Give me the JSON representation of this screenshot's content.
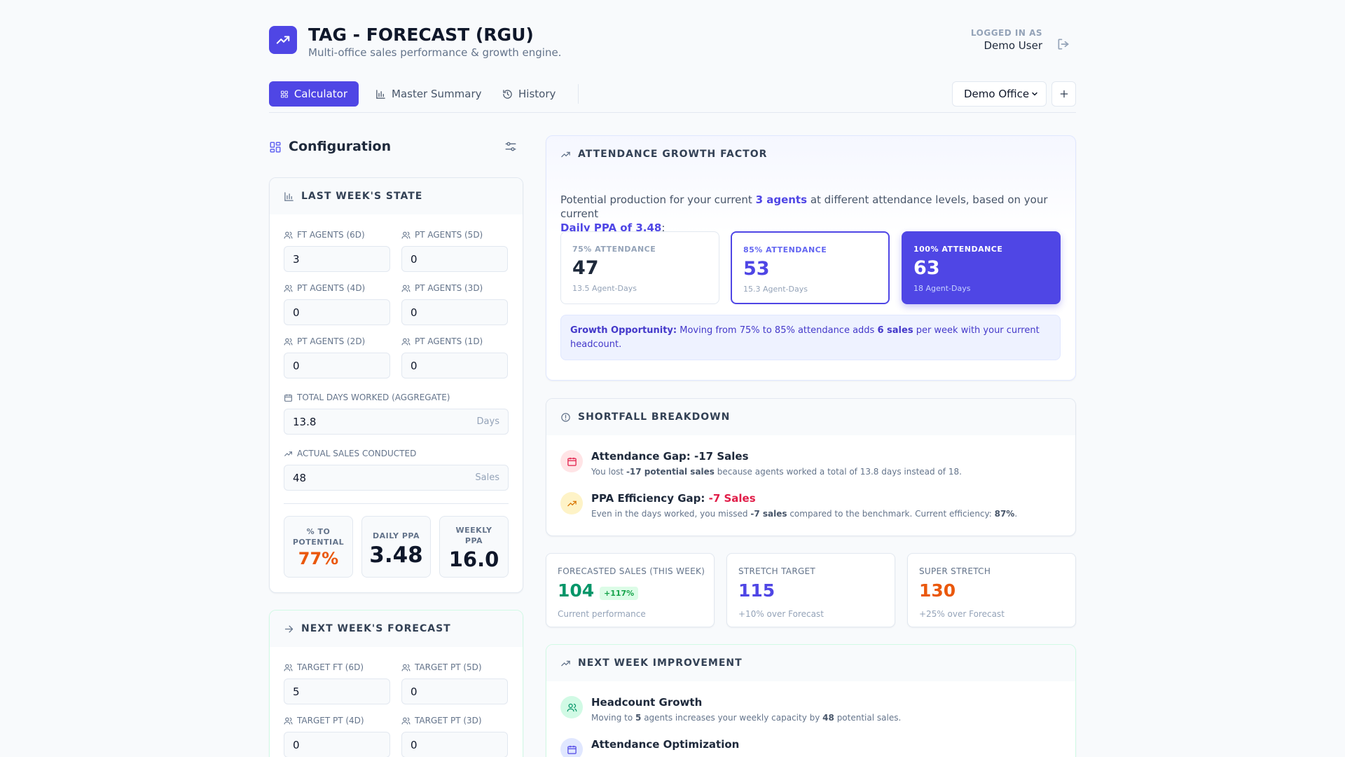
{
  "header": {
    "title": "TAG - FORECAST (RGU)",
    "subtitle": "Multi-office sales performance & growth engine.",
    "logged_in_label": "LOGGED IN AS",
    "user": "Demo User"
  },
  "nav": {
    "tabs": [
      {
        "label": "Calculator",
        "active": true
      },
      {
        "label": "Master Summary",
        "active": false
      },
      {
        "label": "History",
        "active": false
      }
    ],
    "office": "Demo Office"
  },
  "config": {
    "title": "Configuration",
    "last_week": {
      "heading": "LAST WEEK'S STATE",
      "fields": [
        {
          "label": "FT AGENTS (6D)",
          "value": "3"
        },
        {
          "label": "PT AGENTS (5D)",
          "value": "0"
        },
        {
          "label": "PT AGENTS (4D)",
          "value": "0"
        },
        {
          "label": "PT AGENTS (3D)",
          "value": "0"
        },
        {
          "label": "PT AGENTS (2D)",
          "value": "0"
        },
        {
          "label": "PT AGENTS (1D)",
          "value": "0"
        }
      ],
      "total_days": {
        "label": "TOTAL DAYS WORKED (AGGREGATE)",
        "value": "13.8",
        "unit": "Days"
      },
      "actual_sales": {
        "label": "ACTUAL SALES CONDUCTED",
        "value": "48",
        "unit": "Sales"
      },
      "metrics": [
        {
          "label": "% TO POTENTIAL",
          "value": "77%",
          "color": "#ea580c"
        },
        {
          "label": "DAILY PPA",
          "value": "3.48",
          "color": "#0f172a"
        },
        {
          "label": "WEEKLY PPA",
          "value": "16.0",
          "color": "#0f172a"
        }
      ]
    },
    "next_week": {
      "heading": "NEXT WEEK'S FORECAST",
      "fields": [
        {
          "label": "TARGET FT (6D)",
          "value": "5"
        },
        {
          "label": "TARGET PT (5D)",
          "value": "0"
        },
        {
          "label": "TARGET PT (4D)",
          "value": "0"
        },
        {
          "label": "TARGET PT (3D)",
          "value": "0"
        }
      ]
    }
  },
  "attendance": {
    "heading": "ATTENDANCE GROWTH FACTOR",
    "desc_pre": "Potential production for your current ",
    "agents": "3 agents",
    "desc_mid": " at different attendance levels, based on your current ",
    "ppa": "Daily PPA of 3.48",
    "desc_post": ":",
    "levels": [
      {
        "label": "75% ATTENDANCE",
        "value": "47",
        "sub": "13.5 Agent-Days"
      },
      {
        "label": "85% ATTENDANCE",
        "value": "53",
        "sub": "15.3 Agent-Days"
      },
      {
        "label": "100% ATTENDANCE",
        "value": "63",
        "sub": "18 Agent-Days"
      }
    ],
    "growth_label": "Growth Opportunity:",
    "growth_pre": " Moving from 75% to 85% attendance adds ",
    "growth_sales": "6 sales",
    "growth_post": " per week with your current headcount."
  },
  "shortfall": {
    "heading": "SHORTFALL BREAKDOWN",
    "attendance_gap": {
      "title": "Attendance Gap: -17 Sales",
      "text_pre": "You lost ",
      "text_bold": "-17 potential sales",
      "text_post": " because agents worked a total of 13.8 days instead of 18."
    },
    "ppa_gap": {
      "title_pre": "PPA Efficiency Gap: ",
      "title_value": "-7 Sales",
      "text_pre": "Even in the days worked, you missed ",
      "text_bold": "-7 sales",
      "text_mid": " compared to the benchmark. Current efficiency: ",
      "text_eff": "87%",
      "text_post": "."
    }
  },
  "kpis": [
    {
      "label": "FORECASTED SALES (THIS WEEK)",
      "value": "104",
      "badge": "+117%",
      "sub": "Current performance",
      "color": "#059669"
    },
    {
      "label": "STRETCH TARGET",
      "value": "115",
      "sub": "+10% over Forecast",
      "color": "#4f46e5"
    },
    {
      "label": "SUPER STRETCH",
      "value": "130",
      "sub": "+25% over Forecast",
      "color": "#ea580c"
    }
  ],
  "improvement": {
    "heading": "NEXT WEEK IMPROVEMENT",
    "headcount": {
      "title": "Headcount Growth",
      "text_pre": "Moving to ",
      "text_agents": "5",
      "text_mid": " agents increases your weekly capacity by ",
      "text_sales": "48",
      "text_post": " potential sales."
    },
    "attendance_opt": {
      "title": "Attendance Optimization"
    }
  }
}
